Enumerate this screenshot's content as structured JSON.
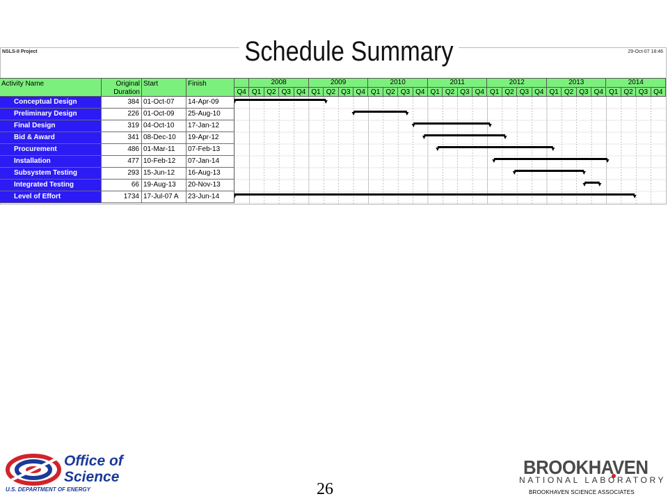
{
  "slide": {
    "title": "Schedule Summary",
    "project_name": "NSLS-II Project",
    "timestamp": "29-Oct-07 18:46",
    "page_number": "26"
  },
  "table": {
    "headers": {
      "activity": "Activity Name",
      "duration_line1": "Original",
      "duration_line2": "Duration",
      "start": "Start",
      "finish": "Finish"
    },
    "rows": [
      {
        "name": "Conceptual Design",
        "duration": "384",
        "start": "01-Oct-07",
        "finish": "14-Apr-09"
      },
      {
        "name": "Preliminary Design",
        "duration": "226",
        "start": "01-Oct-09",
        "finish": "25-Aug-10"
      },
      {
        "name": "Final  Design",
        "duration": "319",
        "start": "04-Oct-10",
        "finish": "17-Jan-12"
      },
      {
        "name": "Bid & Award",
        "duration": "341",
        "start": "08-Dec-10",
        "finish": "19-Apr-12"
      },
      {
        "name": "Procurement",
        "duration": "486",
        "start": "01-Mar-11",
        "finish": "07-Feb-13"
      },
      {
        "name": "Installation",
        "duration": "477",
        "start": "10-Feb-12",
        "finish": "07-Jan-14"
      },
      {
        "name": "Subsystem Testing",
        "duration": "293",
        "start": "15-Jun-12",
        "finish": "16-Aug-13"
      },
      {
        "name": "Integrated Testing",
        "duration": "66",
        "start": "19-Aug-13",
        "finish": "20-Nov-13"
      },
      {
        "name": "Level of Effort",
        "duration": "1734",
        "start": "17-Jul-07 A",
        "finish": "23-Jun-14"
      }
    ]
  },
  "timeline": {
    "years": [
      "2008",
      "2009",
      "2010",
      "2011",
      "2012",
      "2013",
      "2014"
    ],
    "quarters": [
      "Q4",
      "Q1",
      "Q2",
      "Q3",
      "Q4",
      "Q1",
      "Q2",
      "Q3",
      "Q4",
      "Q1",
      "Q2",
      "Q3",
      "Q4",
      "Q1",
      "Q2",
      "Q3",
      "Q4",
      "Q1",
      "Q2",
      "Q3",
      "Q4",
      "Q1",
      "Q2",
      "Q3",
      "Q4",
      "Q1",
      "Q2",
      "Q3",
      "Q4"
    ]
  },
  "chart_data": {
    "type": "gantt",
    "x_axis": "calendar quarters, Q4 2007 through Q4 2014",
    "tasks": [
      {
        "name": "Conceptual Design",
        "start": "2007-10-01",
        "finish": "2009-04-14"
      },
      {
        "name": "Preliminary Design",
        "start": "2009-10-01",
        "finish": "2010-08-25"
      },
      {
        "name": "Final  Design",
        "start": "2010-10-04",
        "finish": "2012-01-17"
      },
      {
        "name": "Bid & Award",
        "start": "2010-12-08",
        "finish": "2012-04-19"
      },
      {
        "name": "Procurement",
        "start": "2011-03-01",
        "finish": "2013-02-07"
      },
      {
        "name": "Installation",
        "start": "2012-02-10",
        "finish": "2014-01-07"
      },
      {
        "name": "Subsystem Testing",
        "start": "2012-06-15",
        "finish": "2013-08-16"
      },
      {
        "name": "Integrated Testing",
        "start": "2013-08-19",
        "finish": "2013-11-20"
      },
      {
        "name": "Level of Effort",
        "start": "2007-07-17",
        "finish": "2014-06-23"
      }
    ]
  },
  "footer": {
    "office_line1": "Office of",
    "office_line2": "Science",
    "doe": "U.S. DEPARTMENT OF ENERGY",
    "lab_name": "BROOKHAVEN",
    "lab_sub": "NATIONAL LABORATORY",
    "associates": "BROOKHAVEN SCIENCE ASSOCIATES"
  },
  "colors": {
    "header_green": "#7cf07c",
    "activity_blue": "#2c1bf4",
    "bar": "#000000",
    "doe_blue": "#1a3a96",
    "doe_red": "#d2232a"
  }
}
